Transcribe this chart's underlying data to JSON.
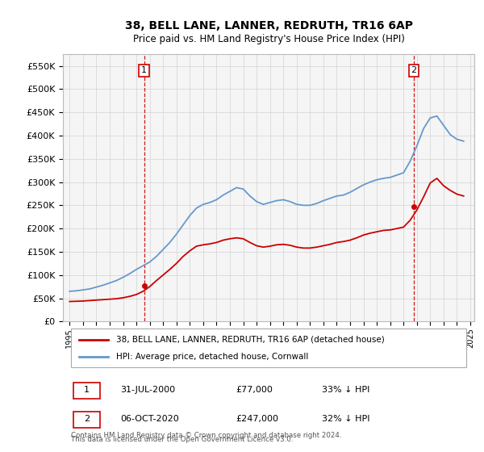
{
  "title1": "38, BELL LANE, LANNER, REDRUTH, TR16 6AP",
  "title2": "Price paid vs. HM Land Registry's House Price Index (HPI)",
  "legend1": "38, BELL LANE, LANNER, REDRUTH, TR16 6AP (detached house)",
  "legend2": "HPI: Average price, detached house, Cornwall",
  "footnote": "Contains HM Land Registry data © Crown copyright and database right 2024.\nThis data is licensed under the Open Government Licence v3.0.",
  "sale1_date": "31-JUL-2000",
  "sale1_price": "£77,000",
  "sale1_hpi": "33% ↓ HPI",
  "sale2_date": "06-OCT-2020",
  "sale2_price": "£247,000",
  "sale2_hpi": "32% ↓ HPI",
  "red_color": "#cc0000",
  "blue_color": "#6699cc",
  "vline_color": "#cc0000",
  "ylim": [
    0,
    575000
  ],
  "yticks": [
    0,
    50000,
    100000,
    150000,
    200000,
    250000,
    300000,
    350000,
    400000,
    450000,
    500000,
    550000
  ],
  "ytick_labels": [
    "£0",
    "£50K",
    "£100K",
    "£150K",
    "£200K",
    "£250K",
    "£300K",
    "£350K",
    "£400K",
    "£450K",
    "£500K",
    "£550K"
  ],
  "hpi_years": [
    1995.0,
    1995.5,
    1996.0,
    1996.5,
    1997.0,
    1997.5,
    1998.0,
    1998.5,
    1999.0,
    1999.5,
    2000.0,
    2000.5,
    2001.0,
    2001.5,
    2002.0,
    2002.5,
    2003.0,
    2003.5,
    2004.0,
    2004.5,
    2005.0,
    2005.5,
    2006.0,
    2006.5,
    2007.0,
    2007.5,
    2008.0,
    2008.5,
    2009.0,
    2009.5,
    2010.0,
    2010.5,
    2011.0,
    2011.5,
    2012.0,
    2012.5,
    2013.0,
    2013.5,
    2014.0,
    2014.5,
    2015.0,
    2015.5,
    2016.0,
    2016.5,
    2017.0,
    2017.5,
    2018.0,
    2018.5,
    2019.0,
    2019.5,
    2020.0,
    2020.5,
    2021.0,
    2021.5,
    2022.0,
    2022.5,
    2023.0,
    2023.5,
    2024.0,
    2024.5
  ],
  "hpi_values": [
    65000,
    66000,
    68000,
    70000,
    74000,
    78000,
    83000,
    88000,
    95000,
    103000,
    112000,
    120000,
    128000,
    140000,
    155000,
    170000,
    188000,
    208000,
    228000,
    244000,
    252000,
    256000,
    262000,
    272000,
    280000,
    288000,
    285000,
    270000,
    258000,
    252000,
    256000,
    260000,
    262000,
    258000,
    252000,
    250000,
    250000,
    254000,
    260000,
    265000,
    270000,
    272000,
    278000,
    286000,
    294000,
    300000,
    305000,
    308000,
    310000,
    315000,
    320000,
    345000,
    378000,
    415000,
    438000,
    442000,
    422000,
    402000,
    392000,
    388000
  ],
  "red_years": [
    1995.0,
    1995.5,
    1996.0,
    1996.5,
    1997.0,
    1997.5,
    1998.0,
    1998.5,
    1999.0,
    1999.5,
    2000.0,
    2000.5,
    2001.0,
    2001.5,
    2002.0,
    2002.5,
    2003.0,
    2003.5,
    2004.0,
    2004.5,
    2005.0,
    2005.5,
    2006.0,
    2006.5,
    2007.0,
    2007.5,
    2008.0,
    2008.5,
    2009.0,
    2009.5,
    2010.0,
    2010.5,
    2011.0,
    2011.5,
    2012.0,
    2012.5,
    2013.0,
    2013.5,
    2014.0,
    2014.5,
    2015.0,
    2015.5,
    2016.0,
    2016.5,
    2017.0,
    2017.5,
    2018.0,
    2018.5,
    2019.0,
    2019.5,
    2020.0,
    2020.5,
    2021.0,
    2021.5,
    2022.0,
    2022.5,
    2023.0,
    2023.5,
    2024.0,
    2024.5
  ],
  "red_values": [
    43000,
    43500,
    44000,
    45000,
    46000,
    47000,
    48000,
    49000,
    51000,
    54000,
    58000,
    65000,
    75000,
    88000,
    100000,
    112000,
    125000,
    140000,
    152000,
    162000,
    165000,
    167000,
    170000,
    175000,
    178000,
    180000,
    178000,
    170000,
    163000,
    160000,
    162000,
    165000,
    166000,
    164000,
    160000,
    158000,
    158000,
    160000,
    163000,
    166000,
    170000,
    172000,
    175000,
    180000,
    186000,
    190000,
    193000,
    196000,
    197000,
    200000,
    203000,
    218000,
    240000,
    268000,
    298000,
    308000,
    292000,
    282000,
    274000,
    270000
  ],
  "sale1_x": 2000.58,
  "sale1_y": 77000,
  "sale2_x": 2020.77,
  "sale2_y": 247000,
  "xlim": [
    1994.5,
    2025.3
  ],
  "x_years": [
    1995,
    1996,
    1997,
    1998,
    1999,
    2000,
    2001,
    2002,
    2003,
    2004,
    2005,
    2006,
    2007,
    2008,
    2009,
    2010,
    2011,
    2012,
    2013,
    2014,
    2015,
    2016,
    2017,
    2018,
    2019,
    2020,
    2021,
    2022,
    2023,
    2024,
    2025
  ]
}
